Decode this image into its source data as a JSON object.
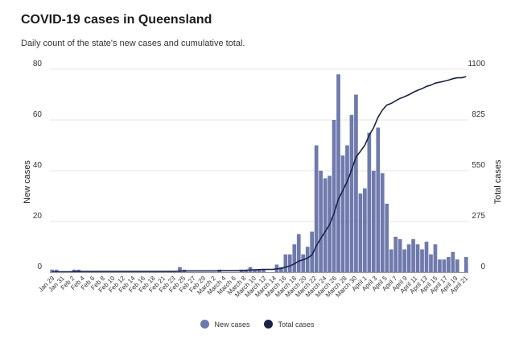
{
  "title": "COVID-19 cases in Queensland",
  "subtitle": "Daily count of the state's new cases and cumulative total.",
  "colors": {
    "bars": "#6f7aac",
    "line": "#1b2346",
    "grid": "#e6e6e6"
  },
  "legend": {
    "new_cases": "New cases",
    "total_cases": "Total cases"
  },
  "chart_data": {
    "type": "bar",
    "ylabel": "New cases",
    "y2label": "Total cases",
    "ylim": [
      0,
      80
    ],
    "y2lim": [
      0,
      1100
    ],
    "yticks": [
      "0",
      "20",
      "40",
      "60",
      "80"
    ],
    "y2ticks": [
      "0",
      "275",
      "550",
      "825",
      "1100"
    ],
    "xtick_labels": [
      "Jan 29",
      "Jan 31",
      "Feb 2",
      "Feb 4",
      "Feb 6",
      "Feb 8",
      "Feb 10",
      "Feb 12",
      "Feb 14",
      "Feb 16",
      "Feb 18",
      "Feb 21",
      "Feb 23",
      "Feb 25",
      "Feb 27",
      "Feb 29",
      "March 2",
      "March 4",
      "March 6",
      "March 8",
      "March 10",
      "March 12",
      "March 14",
      "March 16",
      "March 18",
      "March 20",
      "March 22",
      "March 24",
      "March 26",
      "March 28",
      "March 30",
      "April 1",
      "April 3",
      "April 5",
      "April 7",
      "April 9",
      "April 11",
      "April 13",
      "April 15",
      "April 17",
      "April 19",
      "April 21"
    ],
    "series": [
      {
        "name": "New cases",
        "type": "bar",
        "values": [
          1,
          1,
          0,
          0,
          0,
          1,
          1,
          0,
          0,
          0,
          0,
          0,
          0,
          0,
          0,
          0,
          0,
          0,
          0,
          0,
          0,
          0,
          0,
          0,
          0,
          0,
          0,
          0,
          0,
          2,
          1,
          0,
          0,
          0,
          0,
          0,
          0,
          0,
          1,
          0,
          0,
          0,
          0,
          1,
          1,
          2,
          1,
          1,
          1,
          0,
          0,
          3,
          2,
          7,
          7,
          11,
          15,
          7,
          10,
          16,
          50,
          40,
          37,
          38,
          60,
          78,
          46,
          50,
          62,
          70,
          31,
          33,
          55,
          40,
          57,
          39,
          27,
          9,
          14,
          13,
          9,
          11,
          13,
          11,
          9,
          12,
          7,
          11,
          5,
          5,
          6,
          8,
          5,
          0,
          6
        ]
      },
      {
        "name": "Total cases",
        "type": "line",
        "values": [
          1,
          2,
          2,
          2,
          2,
          3,
          4,
          4,
          4,
          4,
          4,
          4,
          4,
          4,
          4,
          4,
          4,
          4,
          4,
          4,
          4,
          4,
          4,
          4,
          4,
          4,
          4,
          4,
          4,
          6,
          7,
          7,
          7,
          7,
          7,
          7,
          7,
          7,
          8,
          8,
          8,
          8,
          8,
          9,
          10,
          12,
          13,
          14,
          15,
          15,
          15,
          18,
          20,
          27,
          34,
          45,
          60,
          67,
          77,
          93,
          143,
          183,
          220,
          258,
          318,
          396,
          442,
          492,
          554,
          624,
          655,
          688,
          743,
          783,
          840,
          879,
          906,
          915,
          929,
          942,
          951,
          962,
          975,
          986,
          995,
          1007,
          1014,
          1025,
          1030,
          1035,
          1041,
          1049,
          1054,
          1054,
          1060
        ]
      }
    ],
    "grid": true,
    "legend_position": "bottom"
  }
}
